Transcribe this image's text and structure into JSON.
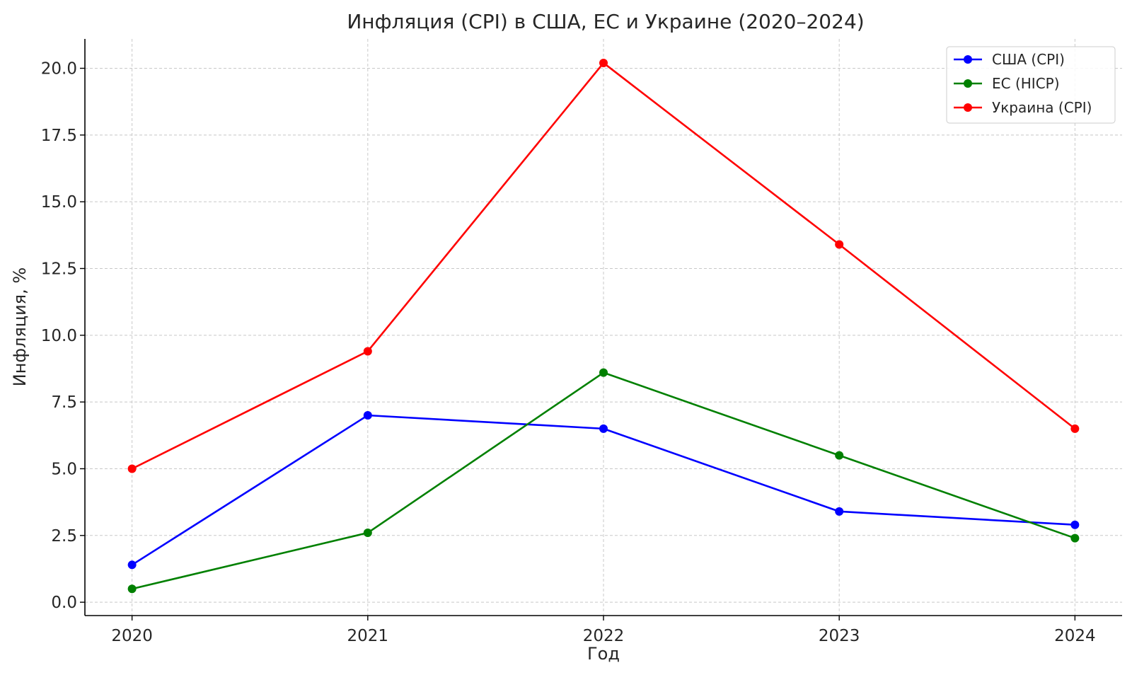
{
  "chart_data": {
    "type": "line",
    "title": "Инфляция (CPI) в США, ЕС и Украине (2020–2024)",
    "xlabel": "Год",
    "ylabel": "Инфляция, %",
    "x": [
      2020,
      2021,
      2022,
      2023,
      2024
    ],
    "x_tick_labels": [
      "2020",
      "2021",
      "2022",
      "2023",
      "2024"
    ],
    "y_ticks": [
      0,
      2.5,
      5,
      7.5,
      10,
      12.5,
      15,
      17.5,
      20
    ],
    "y_tick_labels": [
      "0.0",
      "2.5",
      "5.0",
      "7.5",
      "10.0",
      "12.5",
      "15.0",
      "17.5",
      "20.0"
    ],
    "xlim": [
      2019.8,
      2024.2
    ],
    "ylim": [
      -0.5,
      21.1
    ],
    "grid": true,
    "legend_position": "top-right",
    "series": [
      {
        "name": "США (CPI)",
        "color": "#0000ff",
        "values": [
          1.4,
          7.0,
          6.5,
          3.4,
          2.9
        ]
      },
      {
        "name": "ЕС (HICP)",
        "color": "#008000",
        "values": [
          0.5,
          2.6,
          8.6,
          5.5,
          2.4
        ]
      },
      {
        "name": "Украина (CPI)",
        "color": "#ff0000",
        "values": [
          5.0,
          9.4,
          20.2,
          13.4,
          6.5
        ]
      }
    ]
  }
}
